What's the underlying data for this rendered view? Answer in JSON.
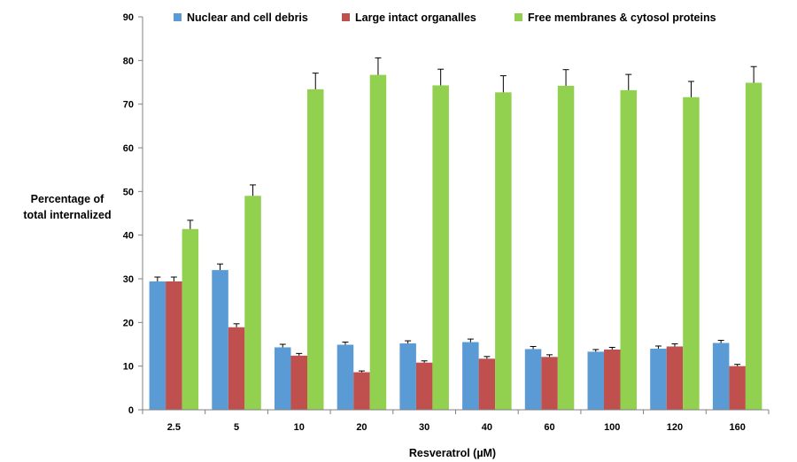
{
  "chart_data": {
    "type": "bar",
    "xlabel": "Resveratrol (µM)",
    "ylabel_lines": [
      "Percentage of",
      "total internalized"
    ],
    "ylim": [
      0,
      90
    ],
    "ytick_step": 10,
    "grid": false,
    "legend_position": "top",
    "error_bars": true,
    "categories": [
      "2.5",
      "5",
      "10",
      "20",
      "30",
      "40",
      "60",
      "100",
      "120",
      "160"
    ],
    "series": [
      {
        "name": "Nuclear and cell debris",
        "color": "#5b9bd5",
        "values": [
          29.4,
          32.0,
          14.3,
          14.9,
          15.2,
          15.5,
          13.9,
          13.3,
          14.0,
          15.3
        ],
        "errors": [
          1.0,
          1.4,
          0.7,
          0.6,
          0.6,
          0.7,
          0.6,
          0.5,
          0.6,
          0.6
        ]
      },
      {
        "name": "Large intact organalles",
        "color": "#c0504d",
        "values": [
          29.4,
          18.9,
          12.4,
          8.6,
          10.8,
          11.7,
          12.1,
          13.8,
          14.5,
          10.0
        ],
        "errors": [
          1.0,
          0.8,
          0.5,
          0.3,
          0.4,
          0.5,
          0.5,
          0.5,
          0.6,
          0.4
        ]
      },
      {
        "name": "Free membranes & cytosol proteins",
        "color": "#92d050",
        "values": [
          41.4,
          49.0,
          73.4,
          76.7,
          74.3,
          72.7,
          74.2,
          73.2,
          71.6,
          74.9
        ],
        "errors": [
          2.0,
          2.5,
          3.7,
          3.9,
          3.7,
          3.8,
          3.7,
          3.6,
          3.6,
          3.7
        ]
      }
    ]
  }
}
